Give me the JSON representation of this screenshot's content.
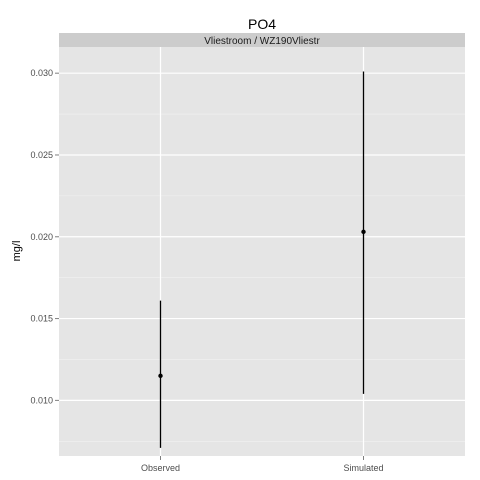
{
  "chart_data": {
    "type": "pointrange",
    "title": "PO4",
    "facet_label": "Vliestroom / WZ190Vliestr",
    "xlabel": "",
    "ylabel": "mg/l",
    "categories": [
      "Observed",
      "Simulated"
    ],
    "series": [
      {
        "values": [
          0.0115,
          0.0203
        ],
        "lower": [
          0.0071,
          0.0104
        ],
        "upper": [
          0.0161,
          0.0301
        ]
      }
    ],
    "ylim": [
      0.0066,
      0.0316
    ],
    "y_ticks": [
      0.01,
      0.015,
      0.02,
      0.025,
      0.03
    ],
    "y_tick_labels": [
      "0.010",
      "0.015",
      "0.020",
      "0.025",
      "0.030"
    ],
    "grid": true,
    "legend": "none",
    "colors": {
      "panel_background": "#e5e5e5",
      "strip_background": "#cccccc",
      "grid_major": "#ffffff",
      "grid_minor": "#f2f2f2",
      "mark": "#000000"
    }
  }
}
